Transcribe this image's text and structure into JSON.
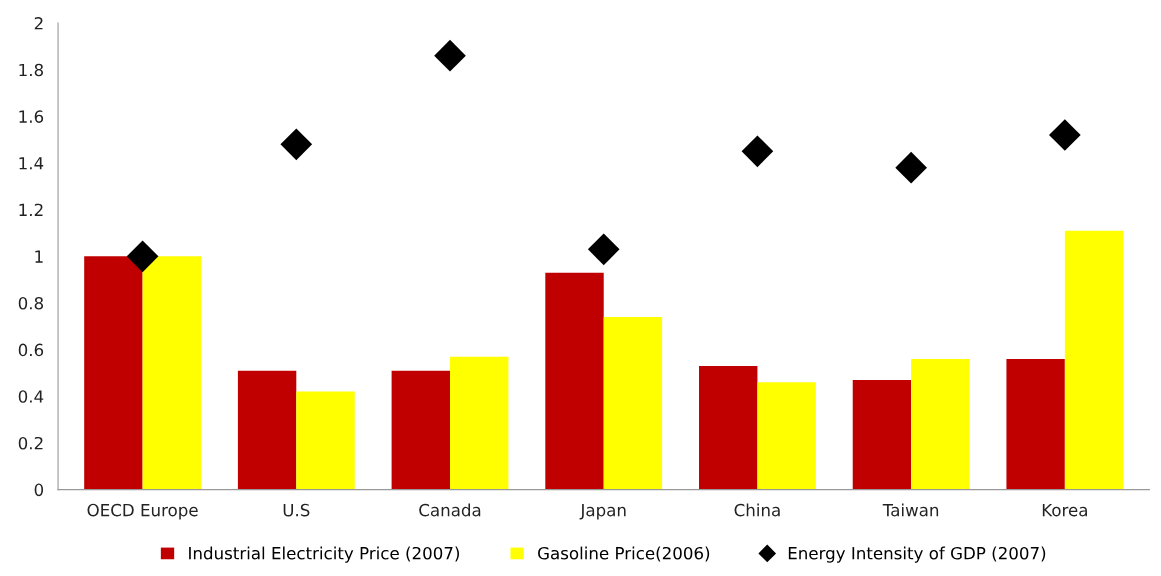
{
  "chart_data": {
    "type": "bar",
    "categories": [
      "OECD Europe",
      "U.S",
      "Canada",
      "Japan",
      "China",
      "Taiwan",
      "Korea"
    ],
    "series": [
      {
        "name": "Industrial Electricity Price (2007)",
        "color": "#c00000",
        "values": [
          1.0,
          0.51,
          0.51,
          0.93,
          0.53,
          0.47,
          0.56
        ]
      },
      {
        "name": "Gasoline Price(2006)",
        "color": "#ffff00",
        "values": [
          1.0,
          0.42,
          0.57,
          0.74,
          0.46,
          0.56,
          1.11
        ]
      },
      {
        "name": "Energy Intensity of GDP (2007)",
        "type": "scatter",
        "marker": "diamond",
        "color": "#000000",
        "x": [
          "OECD Europe",
          "U.S",
          "Canada",
          "Japan",
          "China",
          "Taiwan",
          "Korea"
        ],
        "values": [
          1.0,
          1.48,
          1.86,
          1.03,
          1.45,
          1.38,
          1.52
        ]
      }
    ],
    "ylim": [
      0,
      2
    ],
    "yticks": [
      0,
      0.2,
      0.4,
      0.6,
      0.8,
      1,
      1.2,
      1.4,
      1.6,
      1.8,
      2
    ],
    "grid": false,
    "legend": "bottom"
  }
}
